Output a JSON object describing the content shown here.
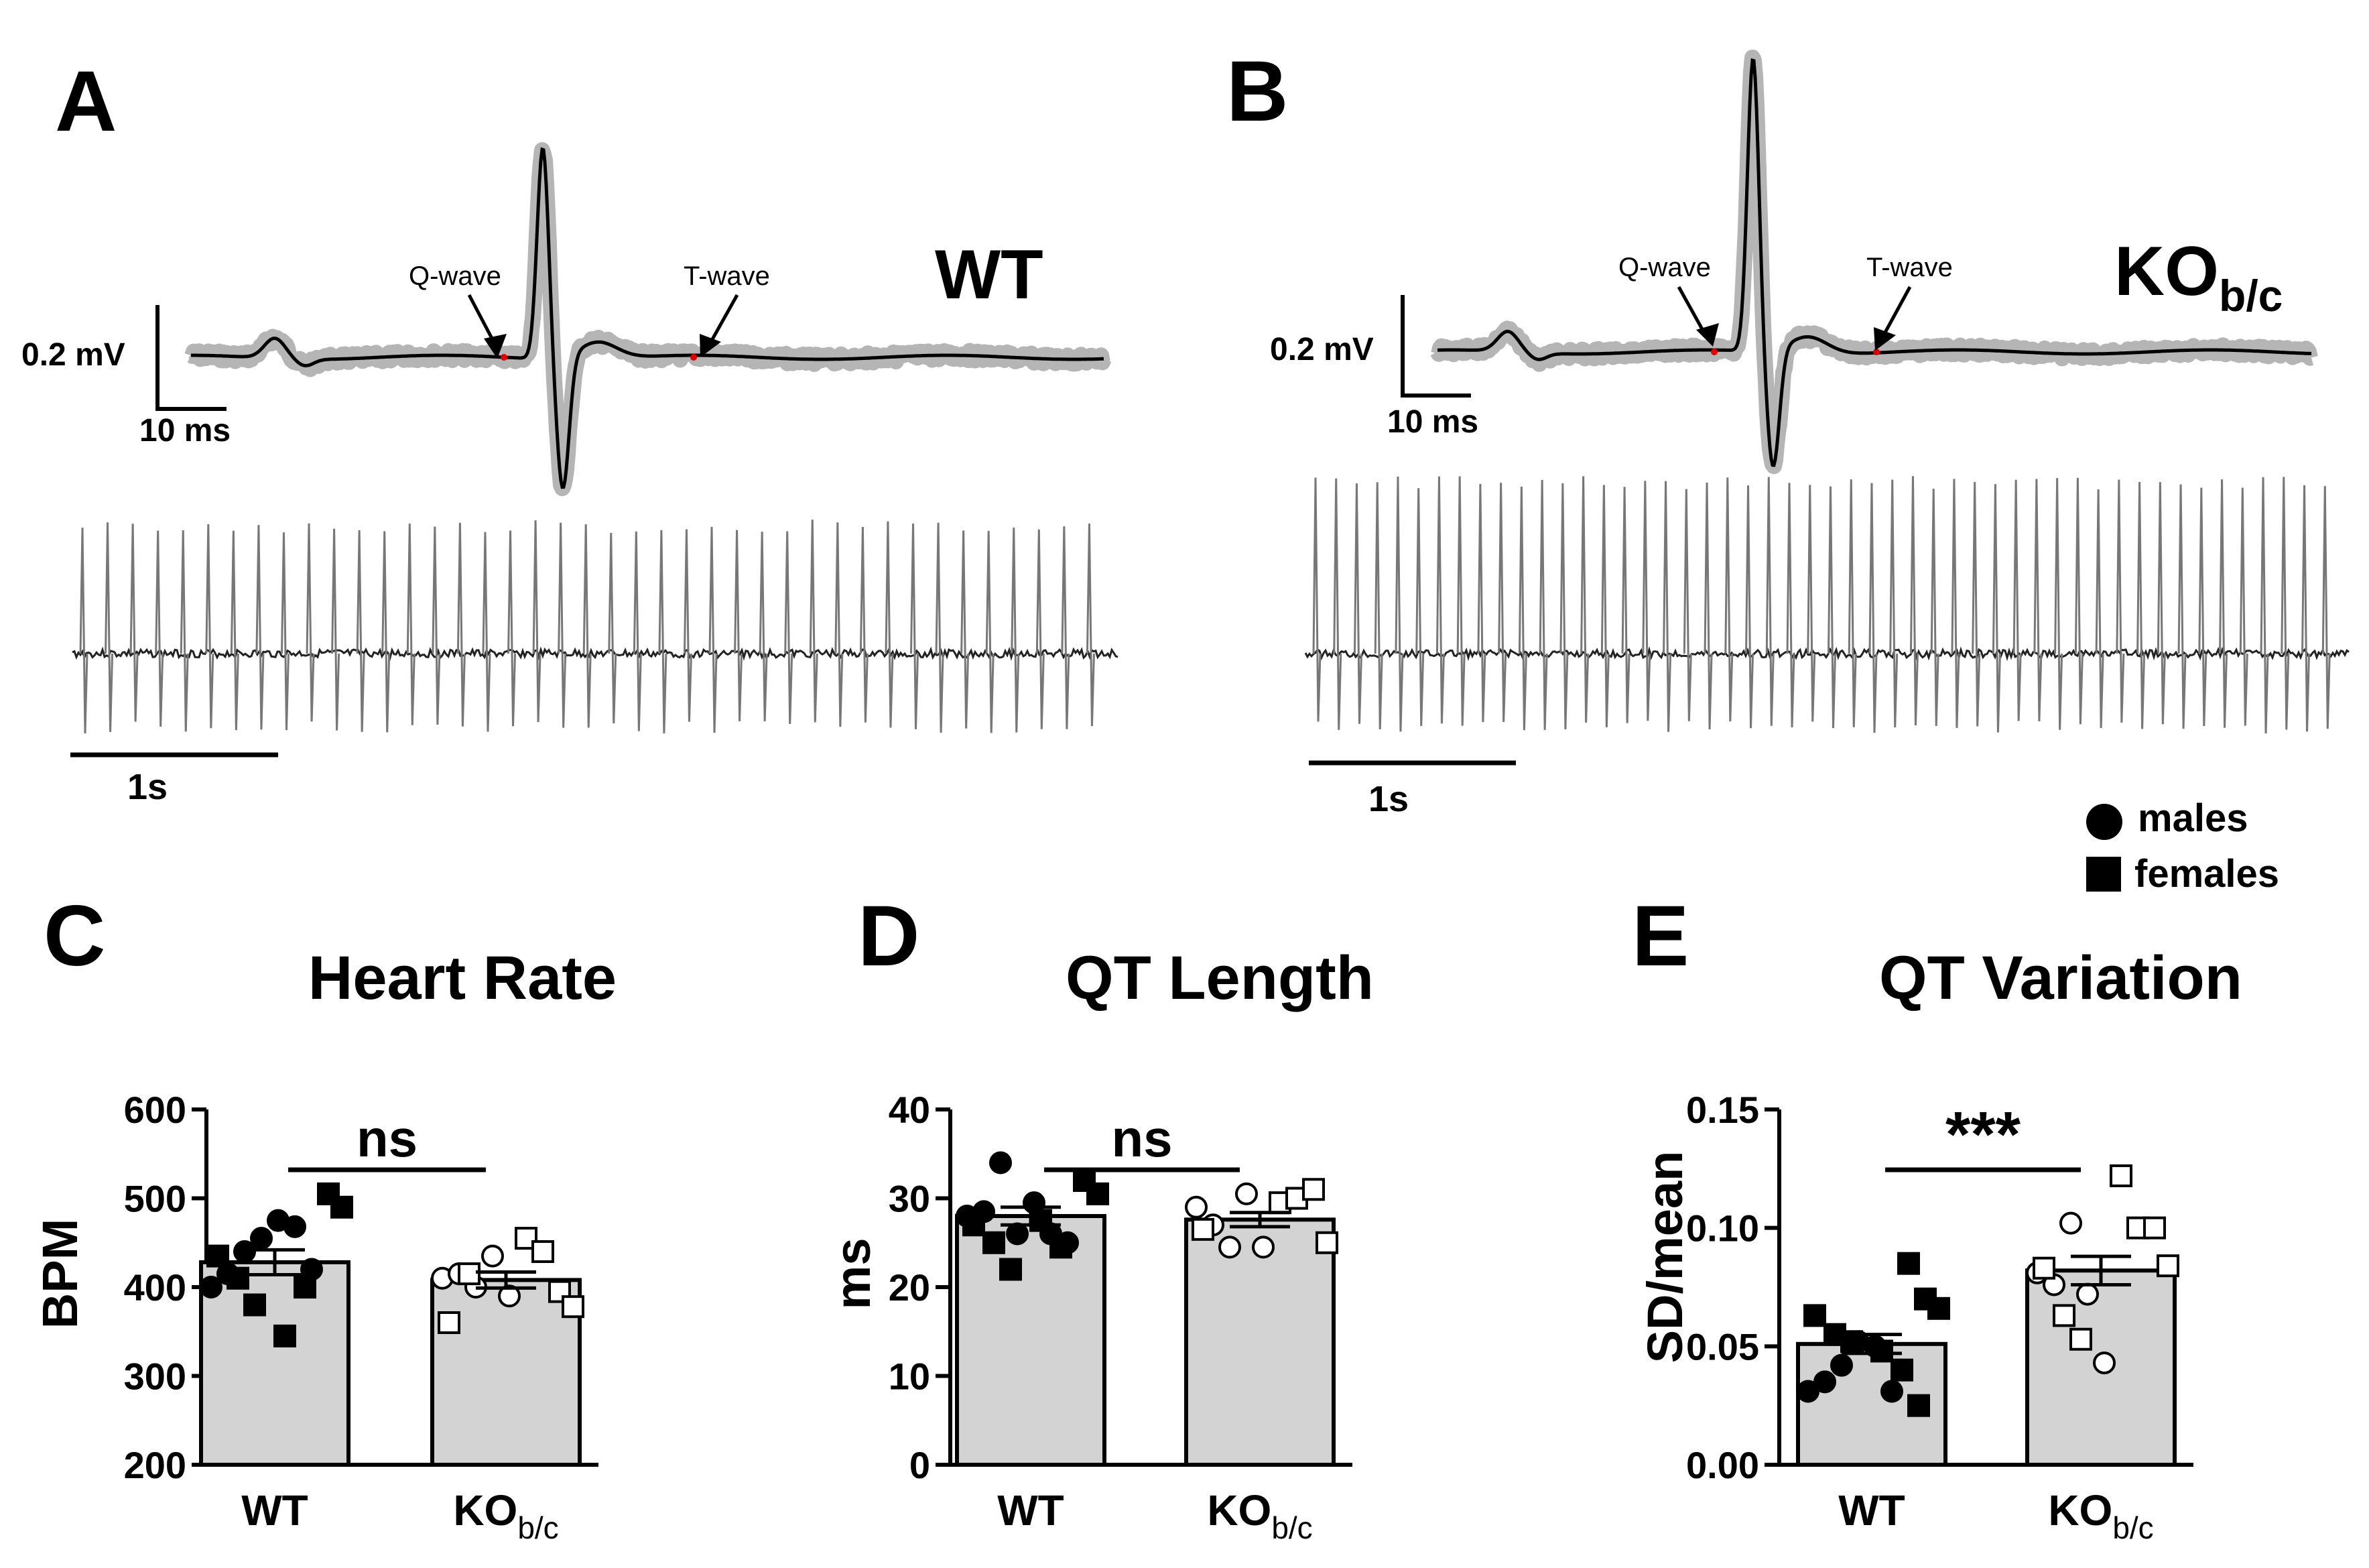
{
  "panels": {
    "A": {
      "letter": "A",
      "genotype": "WT",
      "q_label": "Q-wave",
      "t_label": "T-wave",
      "scale_v": "0.2 mV",
      "scale_t": "10 ms",
      "trace_scale": "1s",
      "beats": 41
    },
    "B": {
      "letter": "B",
      "genotype_main": "KO",
      "genotype_sub": "b/c",
      "q_label": "Q-wave",
      "t_label": "T-wave",
      "scale_v": "0.2 mV",
      "scale_t": "10 ms",
      "trace_scale": "1s",
      "beats": 50
    }
  },
  "legend": {
    "males": "males",
    "females": "females"
  },
  "chart_data": [
    {
      "panel": "C",
      "type": "bar",
      "title": "Heart Rate",
      "ylabel": "BPM",
      "ylim": [
        200,
        600
      ],
      "yticks": [
        "200",
        "300",
        "400",
        "500",
        "600"
      ],
      "categories": [
        "WT",
        "KO"
      ],
      "category_sub": [
        "",
        "b/c"
      ],
      "values": [
        428,
        408
      ],
      "sem": [
        14,
        9
      ],
      "significance": "ns",
      "points": [
        {
          "group": 0,
          "sex": "m",
          "y": 400
        },
        {
          "group": 0,
          "sex": "m",
          "y": 415
        },
        {
          "group": 0,
          "sex": "m",
          "y": 440
        },
        {
          "group": 0,
          "sex": "m",
          "y": 455
        },
        {
          "group": 0,
          "sex": "m",
          "y": 475
        },
        {
          "group": 0,
          "sex": "m",
          "y": 468
        },
        {
          "group": 0,
          "sex": "m",
          "y": 420
        },
        {
          "group": 0,
          "sex": "f",
          "y": 505
        },
        {
          "group": 0,
          "sex": "f",
          "y": 490
        },
        {
          "group": 0,
          "sex": "f",
          "y": 435
        },
        {
          "group": 0,
          "sex": "f",
          "y": 410
        },
        {
          "group": 0,
          "sex": "f",
          "y": 380
        },
        {
          "group": 0,
          "sex": "f",
          "y": 345
        },
        {
          "group": 0,
          "sex": "f",
          "y": 400
        },
        {
          "group": 1,
          "sex": "m",
          "y": 410
        },
        {
          "group": 1,
          "sex": "m",
          "y": 415
        },
        {
          "group": 1,
          "sex": "m",
          "y": 400
        },
        {
          "group": 1,
          "sex": "m",
          "y": 435
        },
        {
          "group": 1,
          "sex": "m",
          "y": 390
        },
        {
          "group": 1,
          "sex": "f",
          "y": 455
        },
        {
          "group": 1,
          "sex": "f",
          "y": 440
        },
        {
          "group": 1,
          "sex": "f",
          "y": 395
        },
        {
          "group": 1,
          "sex": "f",
          "y": 378
        },
        {
          "group": 1,
          "sex": "f",
          "y": 360
        },
        {
          "group": 1,
          "sex": "f",
          "y": 415
        }
      ]
    },
    {
      "panel": "D",
      "type": "bar",
      "title": "QT Length",
      "ylabel": "ms",
      "ylim": [
        0,
        40
      ],
      "yticks": [
        "0",
        "10",
        "20",
        "30",
        "40"
      ],
      "categories": [
        "WT",
        "KO"
      ],
      "category_sub": [
        "",
        "b/c"
      ],
      "values": [
        28.0,
        27.6
      ],
      "sem": [
        1.0,
        0.8
      ],
      "significance": "ns",
      "points": [
        {
          "group": 0,
          "sex": "m",
          "y": 28.0
        },
        {
          "group": 0,
          "sex": "m",
          "y": 28.5
        },
        {
          "group": 0,
          "sex": "m",
          "y": 34.0
        },
        {
          "group": 0,
          "sex": "m",
          "y": 26.0
        },
        {
          "group": 0,
          "sex": "m",
          "y": 29.5
        },
        {
          "group": 0,
          "sex": "m",
          "y": 26.0
        },
        {
          "group": 0,
          "sex": "m",
          "y": 25.0
        },
        {
          "group": 0,
          "sex": "f",
          "y": 32.0
        },
        {
          "group": 0,
          "sex": "f",
          "y": 30.5
        },
        {
          "group": 0,
          "sex": "f",
          "y": 27.0
        },
        {
          "group": 0,
          "sex": "f",
          "y": 25.0
        },
        {
          "group": 0,
          "sex": "f",
          "y": 22.0
        },
        {
          "group": 0,
          "sex": "f",
          "y": 27.5
        },
        {
          "group": 0,
          "sex": "f",
          "y": 24.5
        },
        {
          "group": 1,
          "sex": "m",
          "y": 29.0
        },
        {
          "group": 1,
          "sex": "m",
          "y": 27.0
        },
        {
          "group": 1,
          "sex": "m",
          "y": 24.5
        },
        {
          "group": 1,
          "sex": "m",
          "y": 30.5
        },
        {
          "group": 1,
          "sex": "m",
          "y": 24.5
        },
        {
          "group": 1,
          "sex": "f",
          "y": 29.5
        },
        {
          "group": 1,
          "sex": "f",
          "y": 30.0
        },
        {
          "group": 1,
          "sex": "f",
          "y": 31.0
        },
        {
          "group": 1,
          "sex": "f",
          "y": 25.0
        },
        {
          "group": 1,
          "sex": "f",
          "y": 26.5
        }
      ]
    },
    {
      "panel": "E",
      "type": "bar",
      "title": "QT Variation",
      "ylabel": "SD/mean",
      "ylim": [
        0,
        0.15
      ],
      "yticks": [
        "0.00",
        "0.05",
        "0.10",
        "0.15"
      ],
      "categories": [
        "WT",
        "KO"
      ],
      "category_sub": [
        "",
        "b/c"
      ],
      "values": [
        0.051,
        0.082
      ],
      "sem": [
        0.004,
        0.006
      ],
      "significance": "***",
      "points": [
        {
          "group": 0,
          "sex": "m",
          "y": 0.031
        },
        {
          "group": 0,
          "sex": "m",
          "y": 0.035
        },
        {
          "group": 0,
          "sex": "m",
          "y": 0.042
        },
        {
          "group": 0,
          "sex": "m",
          "y": 0.052
        },
        {
          "group": 0,
          "sex": "m",
          "y": 0.05
        },
        {
          "group": 0,
          "sex": "m",
          "y": 0.031
        },
        {
          "group": 0,
          "sex": "f",
          "y": 0.085
        },
        {
          "group": 0,
          "sex": "f",
          "y": 0.07
        },
        {
          "group": 0,
          "sex": "f",
          "y": 0.066
        },
        {
          "group": 0,
          "sex": "f",
          "y": 0.063
        },
        {
          "group": 0,
          "sex": "f",
          "y": 0.055
        },
        {
          "group": 0,
          "sex": "f",
          "y": 0.052
        },
        {
          "group": 0,
          "sex": "f",
          "y": 0.048
        },
        {
          "group": 0,
          "sex": "f",
          "y": 0.04
        },
        {
          "group": 0,
          "sex": "f",
          "y": 0.025
        },
        {
          "group": 1,
          "sex": "m",
          "y": 0.081
        },
        {
          "group": 1,
          "sex": "m",
          "y": 0.076
        },
        {
          "group": 1,
          "sex": "m",
          "y": 0.102
        },
        {
          "group": 1,
          "sex": "m",
          "y": 0.072
        },
        {
          "group": 1,
          "sex": "m",
          "y": 0.043
        },
        {
          "group": 1,
          "sex": "f",
          "y": 0.122
        },
        {
          "group": 1,
          "sex": "f",
          "y": 0.1
        },
        {
          "group": 1,
          "sex": "f",
          "y": 0.1
        },
        {
          "group": 1,
          "sex": "f",
          "y": 0.084
        },
        {
          "group": 1,
          "sex": "f",
          "y": 0.083
        },
        {
          "group": 1,
          "sex": "f",
          "y": 0.063
        },
        {
          "group": 1,
          "sex": "f",
          "y": 0.053
        }
      ]
    }
  ]
}
